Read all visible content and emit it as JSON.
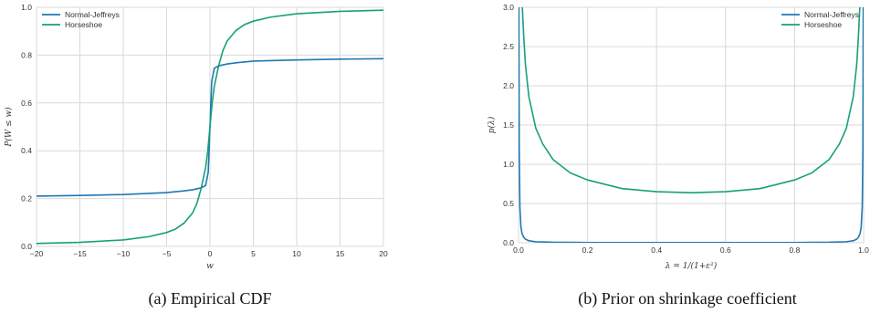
{
  "chart_data": [
    {
      "type": "line",
      "title": "",
      "caption": "(a) Empirical CDF",
      "xlabel": "w",
      "ylabel": "P(W ≤ w)",
      "xlim": [
        -20,
        20
      ],
      "ylim": [
        0,
        1
      ],
      "xticks": [
        -20,
        -15,
        -10,
        -5,
        0,
        5,
        10,
        15,
        20
      ],
      "xtick_labels": [
        "−20",
        "−15",
        "−10",
        "−5",
        "0",
        "5",
        "10",
        "15",
        "20"
      ],
      "yticks": [
        0,
        0.2,
        0.4,
        0.6,
        0.8,
        1.0
      ],
      "ytick_labels": [
        "0.0",
        "0.2",
        "0.4",
        "0.6",
        "0.8",
        "1.0"
      ],
      "grid": true,
      "legend_position": "top-left",
      "series": [
        {
          "name": "Normal-Jeffreys",
          "color": "#1f77b4",
          "x": [
            -20,
            -15,
            -10,
            -5,
            -3,
            -2,
            -1,
            -0.5,
            -0.2,
            0,
            0.2,
            0.5,
            1,
            2,
            3,
            5,
            10,
            15,
            20
          ],
          "y": [
            0.21,
            0.213,
            0.217,
            0.225,
            0.232,
            0.237,
            0.245,
            0.255,
            0.31,
            0.5,
            0.69,
            0.745,
            0.755,
            0.763,
            0.768,
            0.775,
            0.78,
            0.783,
            0.785
          ]
        },
        {
          "name": "Horseshoe",
          "color": "#16a07a",
          "x": [
            -20,
            -15,
            -10,
            -7,
            -5,
            -4,
            -3,
            -2,
            -1.5,
            -1,
            -0.5,
            -0.25,
            0,
            0.25,
            0.5,
            1,
            1.5,
            2,
            3,
            4,
            5,
            7,
            10,
            15,
            20
          ],
          "y": [
            0.012,
            0.017,
            0.027,
            0.041,
            0.058,
            0.072,
            0.097,
            0.14,
            0.18,
            0.245,
            0.33,
            0.4,
            0.5,
            0.6,
            0.67,
            0.755,
            0.82,
            0.86,
            0.903,
            0.928,
            0.942,
            0.959,
            0.973,
            0.983,
            0.988
          ]
        }
      ]
    },
    {
      "type": "line",
      "title": "",
      "caption": "(b) Prior on shrinkage coefficient",
      "xlabel": "λ = 1/(1+ε²)",
      "ylabel": "p(λ)",
      "xlim": [
        0,
        1
      ],
      "ylim": [
        0,
        3
      ],
      "xticks": [
        0,
        0.2,
        0.4,
        0.6,
        0.8,
        1.0
      ],
      "xtick_labels": [
        "0.0",
        "0.2",
        "0.4",
        "0.6",
        "0.8",
        "1.0"
      ],
      "yticks": [
        0,
        0.5,
        1.0,
        1.5,
        2.0,
        2.5,
        3.0
      ],
      "ytick_labels": [
        "0.0",
        "0.5",
        "1.0",
        "1.5",
        "2.0",
        "2.5",
        "3.0"
      ],
      "grid": true,
      "legend_position": "top-right",
      "series": [
        {
          "name": "Normal-Jeffreys",
          "color": "#1f77b4",
          "x": [
            0.001,
            0.002,
            0.004,
            0.007,
            0.01,
            0.015,
            0.02,
            0.03,
            0.05,
            0.1,
            0.2,
            0.3,
            0.4,
            0.5,
            0.6,
            0.7,
            0.8,
            0.9,
            0.95,
            0.97,
            0.98,
            0.985,
            0.99,
            0.993,
            0.996,
            0.998,
            0.999
          ],
          "y": [
            3,
            1.2,
            0.45,
            0.2,
            0.12,
            0.07,
            0.045,
            0.025,
            0.013,
            0.006,
            0.003,
            0.002,
            0.0018,
            0.0017,
            0.0018,
            0.002,
            0.003,
            0.006,
            0.013,
            0.025,
            0.045,
            0.07,
            0.12,
            0.2,
            0.45,
            1.2,
            3
          ]
        },
        {
          "name": "Horseshoe",
          "color": "#16a07a",
          "x": [
            0.011,
            0.0125,
            0.015,
            0.02,
            0.03,
            0.05,
            0.07,
            0.1,
            0.15,
            0.2,
            0.3,
            0.4,
            0.5,
            0.6,
            0.7,
            0.8,
            0.85,
            0.9,
            0.93,
            0.95,
            0.97,
            0.98,
            0.985,
            0.9875,
            0.989
          ],
          "y": [
            3.0,
            2.86,
            2.63,
            2.27,
            1.86,
            1.46,
            1.26,
            1.06,
            0.89,
            0.8,
            0.69,
            0.65,
            0.637,
            0.65,
            0.69,
            0.8,
            0.89,
            1.06,
            1.26,
            1.46,
            1.86,
            2.27,
            2.63,
            2.86,
            3.0
          ]
        }
      ]
    }
  ]
}
